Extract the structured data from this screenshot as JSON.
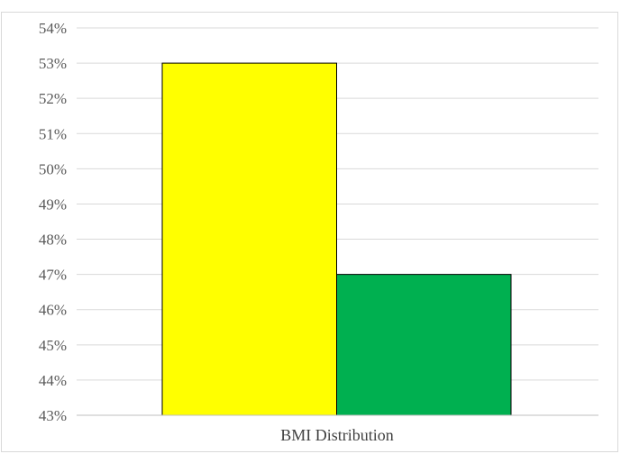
{
  "chart_data": {
    "type": "bar",
    "categories": [
      "BMI Distribution"
    ],
    "series": [
      {
        "values": [
          53
        ],
        "color": "#ffff00"
      },
      {
        "values": [
          47
        ],
        "color": "#00b050"
      }
    ],
    "yticks": [
      43,
      44,
      45,
      46,
      47,
      48,
      49,
      50,
      51,
      52,
      53,
      54
    ],
    "ytick_suffix": "%",
    "ylim": [
      43,
      54
    ],
    "grid": true,
    "legend": "none",
    "title": "",
    "xlabel": "",
    "ylabel": ""
  }
}
